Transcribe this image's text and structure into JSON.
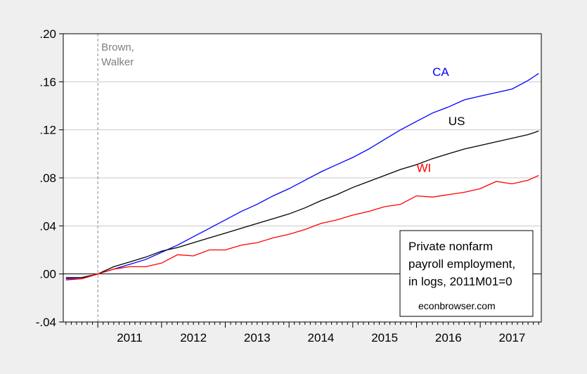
{
  "chart_data": {
    "type": "line",
    "xlim": [
      2010.458,
      2017.958
    ],
    "ylim": [
      -0.04,
      0.2
    ],
    "y_ticks": [
      -0.04,
      0.0,
      0.04,
      0.08,
      0.12,
      0.16,
      0.2
    ],
    "y_tick_labels": [
      "-.04",
      ".00",
      ".04",
      ".08",
      ".12",
      ".16",
      ".20"
    ],
    "x_ticks": [
      2011,
      2012,
      2013,
      2014,
      2015,
      2016,
      2017
    ],
    "x_tick_labels": [
      "2011",
      "2012",
      "2013",
      "2014",
      "2015",
      "2016",
      "2017"
    ],
    "grid": true,
    "event_line": {
      "x": 2011.0,
      "label_line1": "Brown,",
      "label_line2": "Walker"
    },
    "note_lines": [
      "Private nonfarm",
      "payroll employment,",
      "in logs, 2011M01=0"
    ],
    "source": "econbrowser.com",
    "series": [
      {
        "name": "CA",
        "color": "#0000ff",
        "x": [
          2010.5,
          2010.75,
          2011.0,
          2011.25,
          2011.5,
          2011.75,
          2012.0,
          2012.25,
          2012.5,
          2012.75,
          2013.0,
          2013.25,
          2013.5,
          2013.75,
          2014.0,
          2014.25,
          2014.5,
          2014.75,
          2015.0,
          2015.25,
          2015.5,
          2015.75,
          2016.0,
          2016.25,
          2016.5,
          2016.75,
          2017.0,
          2017.25,
          2017.5,
          2017.75,
          2017.917
        ],
        "y": [
          -0.004,
          -0.004,
          0.0,
          0.004,
          0.008,
          0.012,
          0.018,
          0.024,
          0.031,
          0.038,
          0.045,
          0.052,
          0.058,
          0.065,
          0.071,
          0.078,
          0.085,
          0.091,
          0.097,
          0.104,
          0.112,
          0.12,
          0.127,
          0.134,
          0.139,
          0.145,
          0.148,
          0.151,
          0.154,
          0.161,
          0.167
        ]
      },
      {
        "name": "US",
        "color": "#000000",
        "x": [
          2010.5,
          2010.75,
          2011.0,
          2011.25,
          2011.5,
          2011.75,
          2012.0,
          2012.25,
          2012.5,
          2012.75,
          2013.0,
          2013.25,
          2013.5,
          2013.75,
          2014.0,
          2014.25,
          2014.5,
          2014.75,
          2015.0,
          2015.25,
          2015.5,
          2015.75,
          2016.0,
          2016.25,
          2016.5,
          2016.75,
          2017.0,
          2017.25,
          2017.5,
          2017.75,
          2017.917
        ],
        "y": [
          -0.003,
          -0.003,
          0.0,
          0.006,
          0.01,
          0.014,
          0.019,
          0.022,
          0.026,
          0.03,
          0.034,
          0.038,
          0.042,
          0.046,
          0.05,
          0.055,
          0.061,
          0.066,
          0.072,
          0.077,
          0.082,
          0.087,
          0.091,
          0.096,
          0.1,
          0.104,
          0.107,
          0.11,
          0.113,
          0.116,
          0.119
        ]
      },
      {
        "name": "WI",
        "color": "#ff0000",
        "x": [
          2010.5,
          2010.75,
          2011.0,
          2011.25,
          2011.5,
          2011.75,
          2012.0,
          2012.25,
          2012.5,
          2012.75,
          2013.0,
          2013.25,
          2013.5,
          2013.75,
          2014.0,
          2014.25,
          2014.5,
          2014.75,
          2015.0,
          2015.25,
          2015.5,
          2015.75,
          2016.0,
          2016.25,
          2016.5,
          2016.75,
          2017.0,
          2017.25,
          2017.5,
          2017.75,
          2017.917
        ],
        "y": [
          -0.005,
          -0.004,
          0.0,
          0.004,
          0.006,
          0.006,
          0.009,
          0.016,
          0.015,
          0.02,
          0.02,
          0.024,
          0.026,
          0.03,
          0.033,
          0.037,
          0.042,
          0.045,
          0.049,
          0.052,
          0.056,
          0.058,
          0.065,
          0.064,
          0.066,
          0.068,
          0.071,
          0.077,
          0.075,
          0.078,
          0.082
        ]
      }
    ]
  }
}
